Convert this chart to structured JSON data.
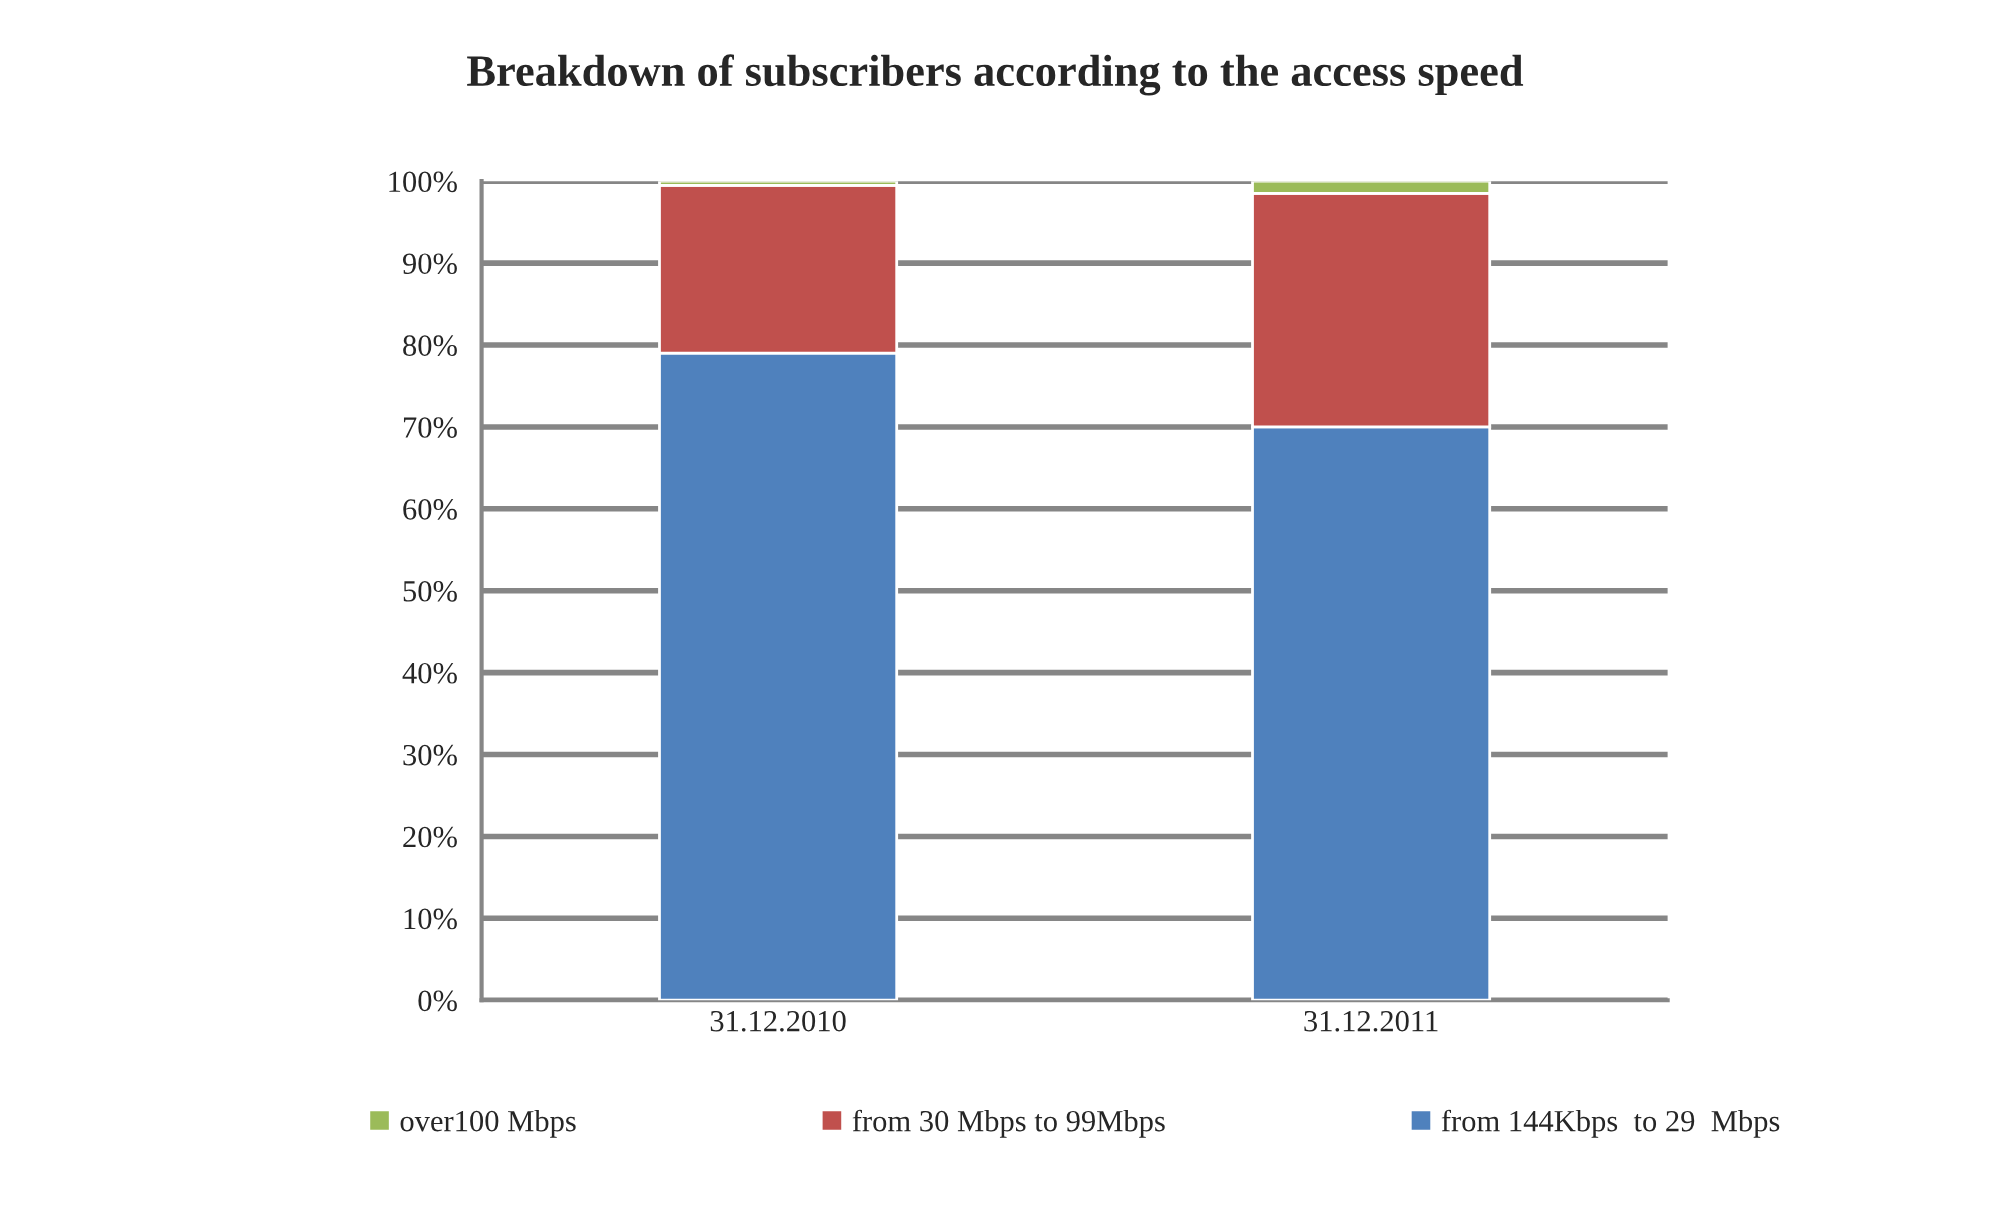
{
  "chart_data": {
    "type": "bar",
    "title": "Breakdown of subscribers according to the access speed",
    "categories": [
      "31.12.2010",
      "31.12.2011"
    ],
    "stacked": true,
    "series": [
      {
        "name": "from 144Kbps  to 29  Mbps",
        "color": "#4f81bd",
        "values": [
          79,
          70
        ]
      },
      {
        "name": "from 30 Mbps to 99Mbps",
        "color": "#c0504d",
        "values": [
          20.5,
          28.5
        ]
      },
      {
        "name": "over100 Mbps",
        "color": "#9bbb59",
        "values": [
          0.5,
          1.5
        ]
      }
    ],
    "ylim": [
      0,
      100
    ],
    "yticks": [
      {
        "value": 0,
        "label": "0%"
      },
      {
        "value": 10,
        "label": "10%"
      },
      {
        "value": 20,
        "label": "20%"
      },
      {
        "value": 30,
        "label": "30%"
      },
      {
        "value": 40,
        "label": "40%"
      },
      {
        "value": 50,
        "label": "50%"
      },
      {
        "value": 60,
        "label": "60%"
      },
      {
        "value": 70,
        "label": "70%"
      },
      {
        "value": 80,
        "label": "80%"
      },
      {
        "value": 90,
        "label": "90%"
      },
      {
        "value": 100,
        "label": "100%"
      }
    ],
    "grid": "y",
    "legend": "bottom"
  }
}
